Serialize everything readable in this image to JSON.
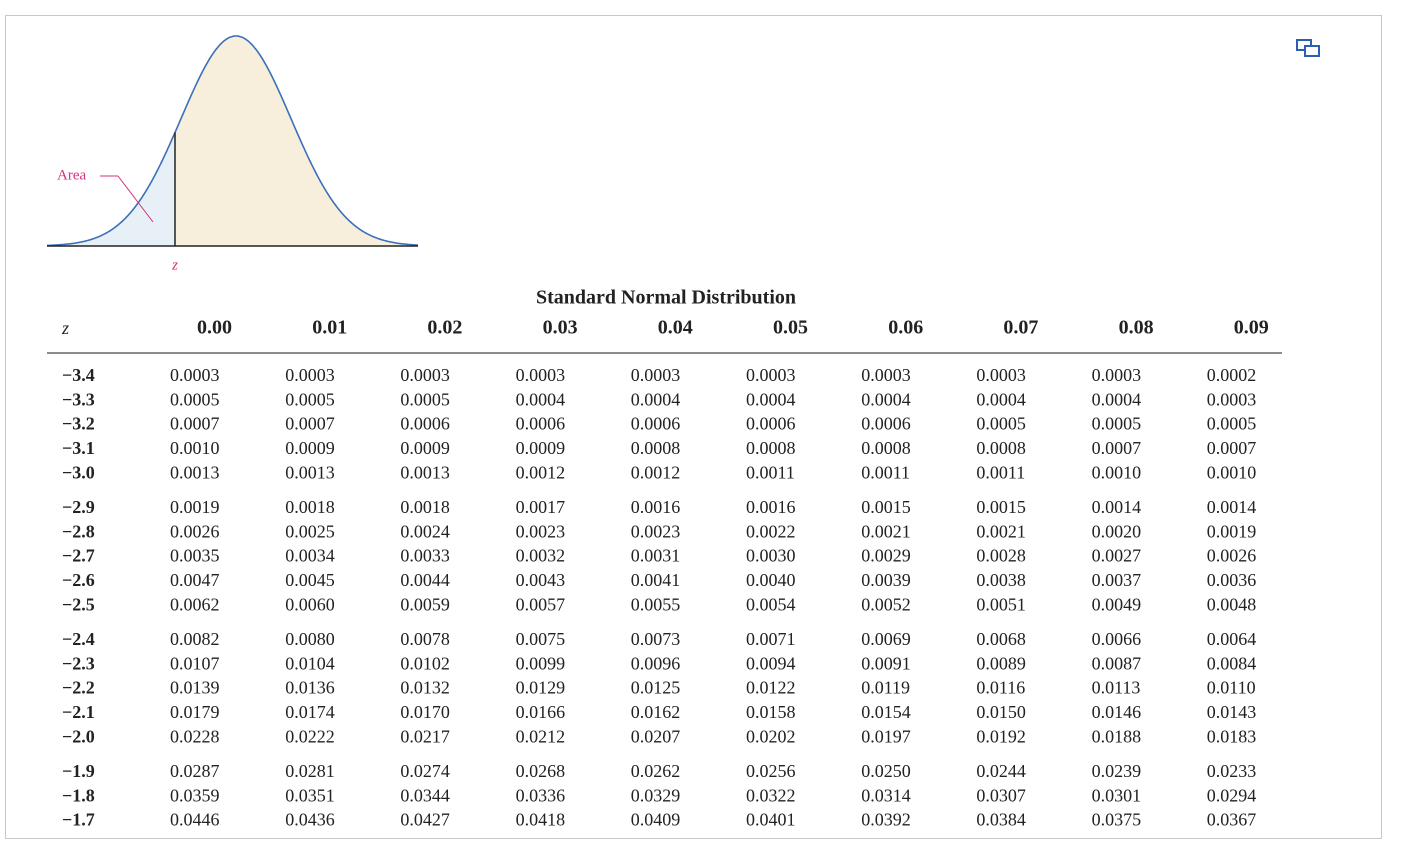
{
  "figure": {
    "area_label": "Area",
    "z_label": "z"
  },
  "table": {
    "title": "Standard Normal Distribution",
    "header": [
      "z",
      "0.00",
      "0.01",
      "0.02",
      "0.03",
      "0.04",
      "0.05",
      "0.06",
      "0.07",
      "0.08",
      "0.09"
    ],
    "rows": [
      [
        "−3.4",
        "0.0003",
        "0.0003",
        "0.0003",
        "0.0003",
        "0.0003",
        "0.0003",
        "0.0003",
        "0.0003",
        "0.0003",
        "0.0002"
      ],
      [
        "−3.3",
        "0.0005",
        "0.0005",
        "0.0005",
        "0.0004",
        "0.0004",
        "0.0004",
        "0.0004",
        "0.0004",
        "0.0004",
        "0.0003"
      ],
      [
        "−3.2",
        "0.0007",
        "0.0007",
        "0.0006",
        "0.0006",
        "0.0006",
        "0.0006",
        "0.0006",
        "0.0005",
        "0.0005",
        "0.0005"
      ],
      [
        "−3.1",
        "0.0010",
        "0.0009",
        "0.0009",
        "0.0009",
        "0.0008",
        "0.0008",
        "0.0008",
        "0.0008",
        "0.0007",
        "0.0007"
      ],
      [
        "−3.0",
        "0.0013",
        "0.0013",
        "0.0013",
        "0.0012",
        "0.0012",
        "0.0011",
        "0.0011",
        "0.0011",
        "0.0010",
        "0.0010"
      ],
      [
        "−2.9",
        "0.0019",
        "0.0018",
        "0.0018",
        "0.0017",
        "0.0016",
        "0.0016",
        "0.0015",
        "0.0015",
        "0.0014",
        "0.0014"
      ],
      [
        "−2.8",
        "0.0026",
        "0.0025",
        "0.0024",
        "0.0023",
        "0.0023",
        "0.0022",
        "0.0021",
        "0.0021",
        "0.0020",
        "0.0019"
      ],
      [
        "−2.7",
        "0.0035",
        "0.0034",
        "0.0033",
        "0.0032",
        "0.0031",
        "0.0030",
        "0.0029",
        "0.0028",
        "0.0027",
        "0.0026"
      ],
      [
        "−2.6",
        "0.0047",
        "0.0045",
        "0.0044",
        "0.0043",
        "0.0041",
        "0.0040",
        "0.0039",
        "0.0038",
        "0.0037",
        "0.0036"
      ],
      [
        "−2.5",
        "0.0062",
        "0.0060",
        "0.0059",
        "0.0057",
        "0.0055",
        "0.0054",
        "0.0052",
        "0.0051",
        "0.0049",
        "0.0048"
      ],
      [
        "−2.4",
        "0.0082",
        "0.0080",
        "0.0078",
        "0.0075",
        "0.0073",
        "0.0071",
        "0.0069",
        "0.0068",
        "0.0066",
        "0.0064"
      ],
      [
        "−2.3",
        "0.0107",
        "0.0104",
        "0.0102",
        "0.0099",
        "0.0096",
        "0.0094",
        "0.0091",
        "0.0089",
        "0.0087",
        "0.0084"
      ],
      [
        "−2.2",
        "0.0139",
        "0.0136",
        "0.0132",
        "0.0129",
        "0.0125",
        "0.0122",
        "0.0119",
        "0.0116",
        "0.0113",
        "0.0110"
      ],
      [
        "−2.1",
        "0.0179",
        "0.0174",
        "0.0170",
        "0.0166",
        "0.0162",
        "0.0158",
        "0.0154",
        "0.0150",
        "0.0146",
        "0.0143"
      ],
      [
        "−2.0",
        "0.0228",
        "0.0222",
        "0.0217",
        "0.0212",
        "0.0207",
        "0.0202",
        "0.0197",
        "0.0192",
        "0.0188",
        "0.0183"
      ],
      [
        "−1.9",
        "0.0287",
        "0.0281",
        "0.0274",
        "0.0268",
        "0.0262",
        "0.0256",
        "0.0250",
        "0.0244",
        "0.0239",
        "0.0233"
      ],
      [
        "−1.8",
        "0.0359",
        "0.0351",
        "0.0344",
        "0.0336",
        "0.0329",
        "0.0322",
        "0.0314",
        "0.0307",
        "0.0301",
        "0.0294"
      ],
      [
        "−1.7",
        "0.0446",
        "0.0436",
        "0.0427",
        "0.0418",
        "0.0409",
        "0.0401",
        "0.0392",
        "0.0384",
        "0.0375",
        "0.0367"
      ]
    ]
  }
}
